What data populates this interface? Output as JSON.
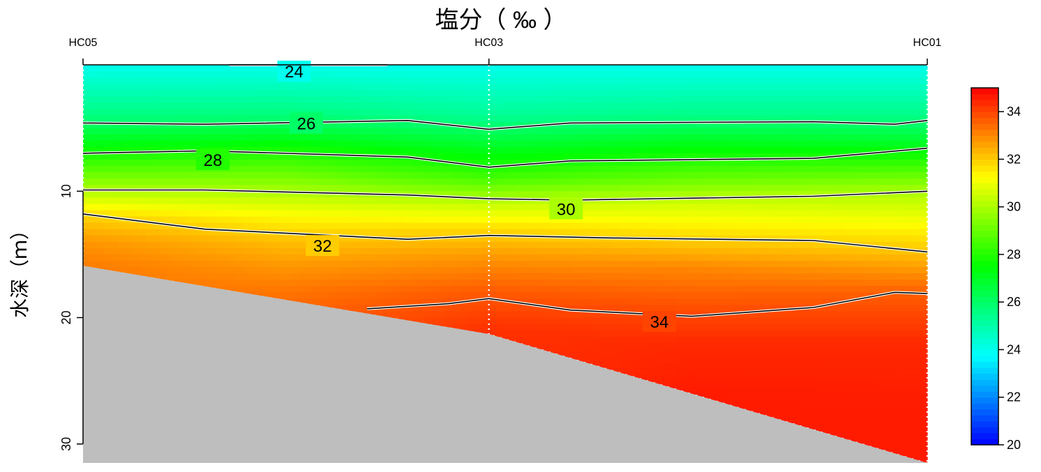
{
  "chart_data": {
    "type": "heatmap",
    "title": "塩分（ ‰ ）",
    "xlabel": "",
    "ylabel": "水深（ｍ）",
    "stations": [
      "HC05",
      "HC03",
      "HC01"
    ],
    "station_km": [
      0,
      1,
      2.08
    ],
    "ylim": [
      31.5,
      0.0
    ],
    "yticks": [
      10,
      20,
      30
    ],
    "colorbar": {
      "range": [
        20,
        35
      ],
      "ticks": [
        20,
        22,
        24,
        26,
        28,
        30,
        32,
        34
      ],
      "palette": [
        "#0000ff",
        "#00ffff",
        "#00ff00",
        "#ffff00",
        "#ff0000"
      ]
    },
    "seabed_depth": [
      {
        "km": 0,
        "depth": 15.9
      },
      {
        "km": 1,
        "depth": 21.3
      },
      {
        "km": 2.08,
        "depth": 31.5
      }
    ],
    "contours": [
      {
        "level": 24,
        "points": [
          [
            0.36,
            0
          ],
          [
            0.75,
            0
          ]
        ],
        "label_at": [
          0.52,
          0.0
        ]
      },
      {
        "level": 26,
        "points": [
          [
            0,
            4.6
          ],
          [
            0.3,
            4.7
          ],
          [
            0.8,
            4.4
          ],
          [
            1,
            5.1
          ],
          [
            1.2,
            4.6
          ],
          [
            1.8,
            4.5
          ],
          [
            2.0,
            4.7
          ],
          [
            2.08,
            4.4
          ]
        ],
        "label_at": [
          0.55,
          4.1
        ]
      },
      {
        "level": 28,
        "points": [
          [
            0,
            7.0
          ],
          [
            0.3,
            6.8
          ],
          [
            0.8,
            7.3
          ],
          [
            1,
            8.1
          ],
          [
            1.2,
            7.6
          ],
          [
            1.8,
            7.4
          ],
          [
            2.08,
            6.6
          ]
        ],
        "label_at": [
          0.32,
          7.0
        ]
      },
      {
        "level": 30,
        "points": [
          [
            0,
            9.9
          ],
          [
            0.3,
            9.9
          ],
          [
            0.8,
            10.3
          ],
          [
            1,
            10.6
          ],
          [
            1.2,
            10.7
          ],
          [
            1.8,
            10.4
          ],
          [
            2.08,
            10.0
          ]
        ],
        "label_at": [
          1.19,
          10.9
        ]
      },
      {
        "level": 32,
        "points": [
          [
            0,
            11.8
          ],
          [
            0.3,
            13.0
          ],
          [
            0.8,
            13.8
          ],
          [
            1,
            13.5
          ],
          [
            1.3,
            13.7
          ],
          [
            1.8,
            13.9
          ],
          [
            2.08,
            14.8
          ]
        ],
        "label_at": [
          0.59,
          13.8
        ]
      },
      {
        "level": 34,
        "points": [
          [
            0.7,
            19.3
          ],
          [
            0.9,
            18.9
          ],
          [
            1,
            18.5
          ],
          [
            1.2,
            19.4
          ],
          [
            1.5,
            19.9
          ],
          [
            1.8,
            19.2
          ],
          [
            2.0,
            18.0
          ],
          [
            2.08,
            18.1
          ]
        ],
        "label_at": [
          1.42,
          19.8
        ]
      }
    ],
    "salinity_profiles": [
      {
        "km": 0.0,
        "depths": [
          0,
          4,
          7,
          10,
          12,
          14,
          16
        ],
        "values": [
          24.0,
          25.6,
          27.8,
          30.1,
          31.9,
          32.8,
          33.2
        ]
      },
      {
        "km": 0.5,
        "depths": [
          0,
          4,
          7,
          10,
          12,
          14,
          16,
          18,
          20
        ],
        "values": [
          24.0,
          25.7,
          28.0,
          30.0,
          31.3,
          32.2,
          32.8,
          33.3,
          33.6
        ]
      },
      {
        "km": 1.0,
        "depths": [
          0,
          4,
          7,
          9,
          11,
          13,
          15,
          18,
          21
        ],
        "values": [
          24.0,
          25.3,
          27.3,
          28.5,
          30.4,
          31.8,
          32.7,
          33.7,
          34.3
        ]
      },
      {
        "km": 1.5,
        "depths": [
          0,
          4,
          6,
          9,
          11,
          14,
          16,
          19,
          22,
          26
        ],
        "values": [
          24.0,
          25.5,
          27.0,
          29.0,
          30.6,
          32.0,
          33.0,
          33.8,
          34.4,
          34.6
        ]
      },
      {
        "km": 2.08,
        "depths": [
          0,
          4,
          6,
          8,
          10,
          13,
          15,
          18,
          22,
          27,
          31.5
        ],
        "values": [
          24.0,
          25.5,
          26.8,
          28.4,
          30.0,
          31.4,
          32.2,
          33.6,
          34.4,
          34.6,
          34.6
        ]
      }
    ]
  }
}
